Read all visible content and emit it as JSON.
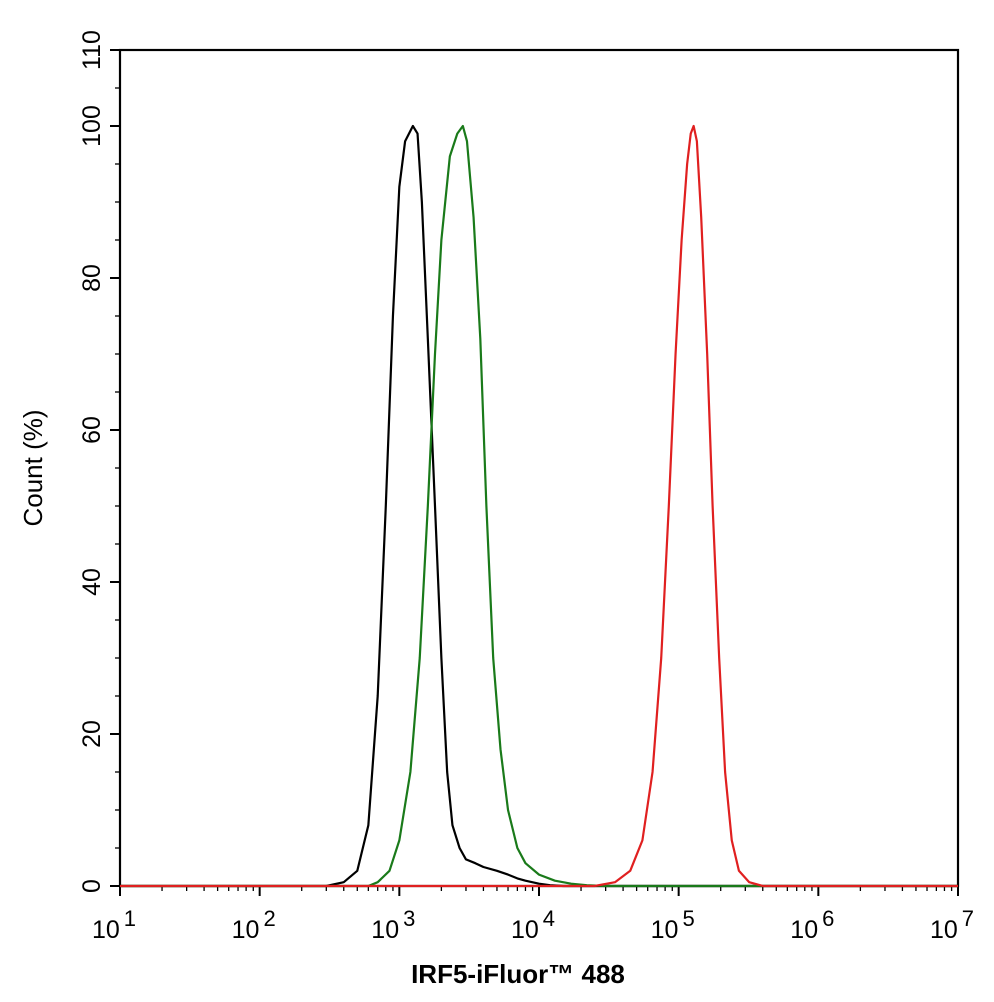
{
  "chart_data": {
    "type": "line",
    "xlabel": "IRF5-iFluor™ 488",
    "ylabel": "Count  (%)",
    "x_scale": "log",
    "xlim": [
      10,
      10000000
    ],
    "ylim": [
      0,
      110
    ],
    "x_tick_labels": [
      {
        "base": "10",
        "exp": "1"
      },
      {
        "base": "10",
        "exp": "2"
      },
      {
        "base": "10",
        "exp": "3"
      },
      {
        "base": "10",
        "exp": "4"
      },
      {
        "base": "10",
        "exp": "5"
      },
      {
        "base": "10",
        "exp": "6"
      },
      {
        "base": "10",
        "exp": "7"
      }
    ],
    "y_ticks": [
      "0",
      "20",
      "40",
      "60",
      "80",
      "100",
      "110"
    ],
    "grid": false,
    "legend": "none",
    "series": [
      {
        "color": "#000000",
        "points": [
          [
            10,
            0
          ],
          [
            300,
            0
          ],
          [
            400,
            0.5
          ],
          [
            500,
            2
          ],
          [
            600,
            8
          ],
          [
            700,
            25
          ],
          [
            800,
            50
          ],
          [
            900,
            75
          ],
          [
            1000,
            92
          ],
          [
            1100,
            98
          ],
          [
            1250,
            100
          ],
          [
            1350,
            99
          ],
          [
            1450,
            90
          ],
          [
            1600,
            72
          ],
          [
            1800,
            50
          ],
          [
            2000,
            30
          ],
          [
            2200,
            15
          ],
          [
            2400,
            8
          ],
          [
            2700,
            5
          ],
          [
            3000,
            3.5
          ],
          [
            3500,
            3
          ],
          [
            4000,
            2.5
          ],
          [
            5000,
            2
          ],
          [
            6000,
            1.5
          ],
          [
            7000,
            1
          ],
          [
            8000,
            0.7
          ],
          [
            10000,
            0.3
          ],
          [
            12000,
            0.1
          ],
          [
            15000,
            0
          ],
          [
            10000000,
            0
          ]
        ]
      },
      {
        "color": "#1a7a1a",
        "points": [
          [
            10,
            0
          ],
          [
            600,
            0
          ],
          [
            700,
            0.5
          ],
          [
            850,
            2
          ],
          [
            1000,
            6
          ],
          [
            1200,
            15
          ],
          [
            1400,
            30
          ],
          [
            1600,
            50
          ],
          [
            1800,
            70
          ],
          [
            2000,
            85
          ],
          [
            2300,
            96
          ],
          [
            2600,
            99
          ],
          [
            2850,
            100
          ],
          [
            3050,
            98
          ],
          [
            3400,
            88
          ],
          [
            3800,
            72
          ],
          [
            4200,
            50
          ],
          [
            4700,
            30
          ],
          [
            5300,
            18
          ],
          [
            6000,
            10
          ],
          [
            7000,
            5
          ],
          [
            8000,
            3
          ],
          [
            10000,
            1.5
          ],
          [
            13000,
            0.7
          ],
          [
            17000,
            0.3
          ],
          [
            22000,
            0.1
          ],
          [
            30000,
            0
          ],
          [
            10000000,
            0
          ]
        ]
      },
      {
        "color": "#e02020",
        "points": [
          [
            10,
            0
          ],
          [
            25000,
            0
          ],
          [
            35000,
            0.5
          ],
          [
            45000,
            2
          ],
          [
            55000,
            6
          ],
          [
            65000,
            15
          ],
          [
            75000,
            30
          ],
          [
            85000,
            50
          ],
          [
            95000,
            70
          ],
          [
            105000,
            85
          ],
          [
            115000,
            95
          ],
          [
            122000,
            99
          ],
          [
            128000,
            100
          ],
          [
            135000,
            98
          ],
          [
            145000,
            88
          ],
          [
            160000,
            70
          ],
          [
            175000,
            50
          ],
          [
            195000,
            30
          ],
          [
            215000,
            15
          ],
          [
            240000,
            6
          ],
          [
            270000,
            2
          ],
          [
            320000,
            0.5
          ],
          [
            400000,
            0
          ],
          [
            10000000,
            0
          ]
        ]
      }
    ]
  }
}
